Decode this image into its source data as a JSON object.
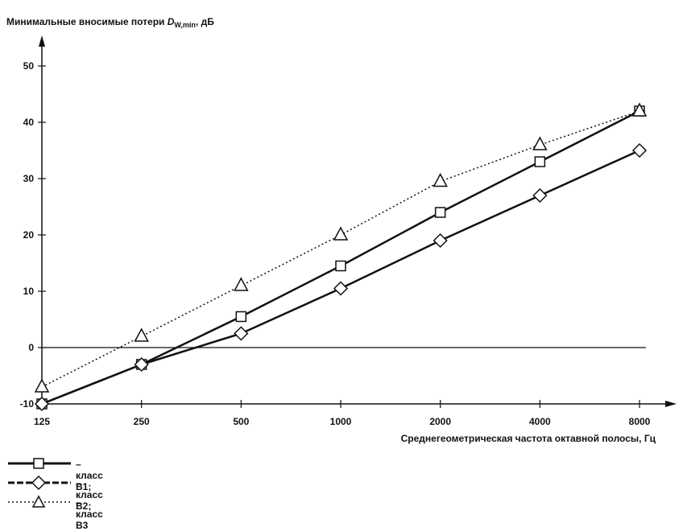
{
  "chart_data": {
    "type": "line",
    "ylabel_prefix": "Минимальные вносимые потери ",
    "ylabel_symbol": "D",
    "ylabel_subscript": "W,min",
    "ylabel_suffix": ", дБ",
    "xlabel": "Среднегеометрическая частота октавной полосы, Гц",
    "categories": [
      "125",
      "250",
      "500",
      "1000",
      "2000",
      "4000",
      "8000"
    ],
    "yticks": [
      -10,
      0,
      10,
      20,
      30,
      40,
      50
    ],
    "ylim": [
      -10,
      50
    ],
    "series": [
      {
        "name": "класс В1",
        "legend_text": "– класс В1;",
        "marker": "square",
        "dash": "solid",
        "values": [
          -10,
          -3,
          5.5,
          14.5,
          24,
          33,
          42
        ]
      },
      {
        "name": "класс В2",
        "legend_text": "– класс В2;",
        "marker": "diamond",
        "dash": "solid",
        "values": [
          -10,
          -3,
          2.5,
          10.5,
          19,
          27,
          35
        ]
      },
      {
        "name": "класс В3",
        "legend_text": "– класс В3",
        "marker": "triangle",
        "dash": "dotted",
        "values": [
          -7,
          2,
          11,
          20,
          29.5,
          36,
          42
        ]
      }
    ]
  }
}
